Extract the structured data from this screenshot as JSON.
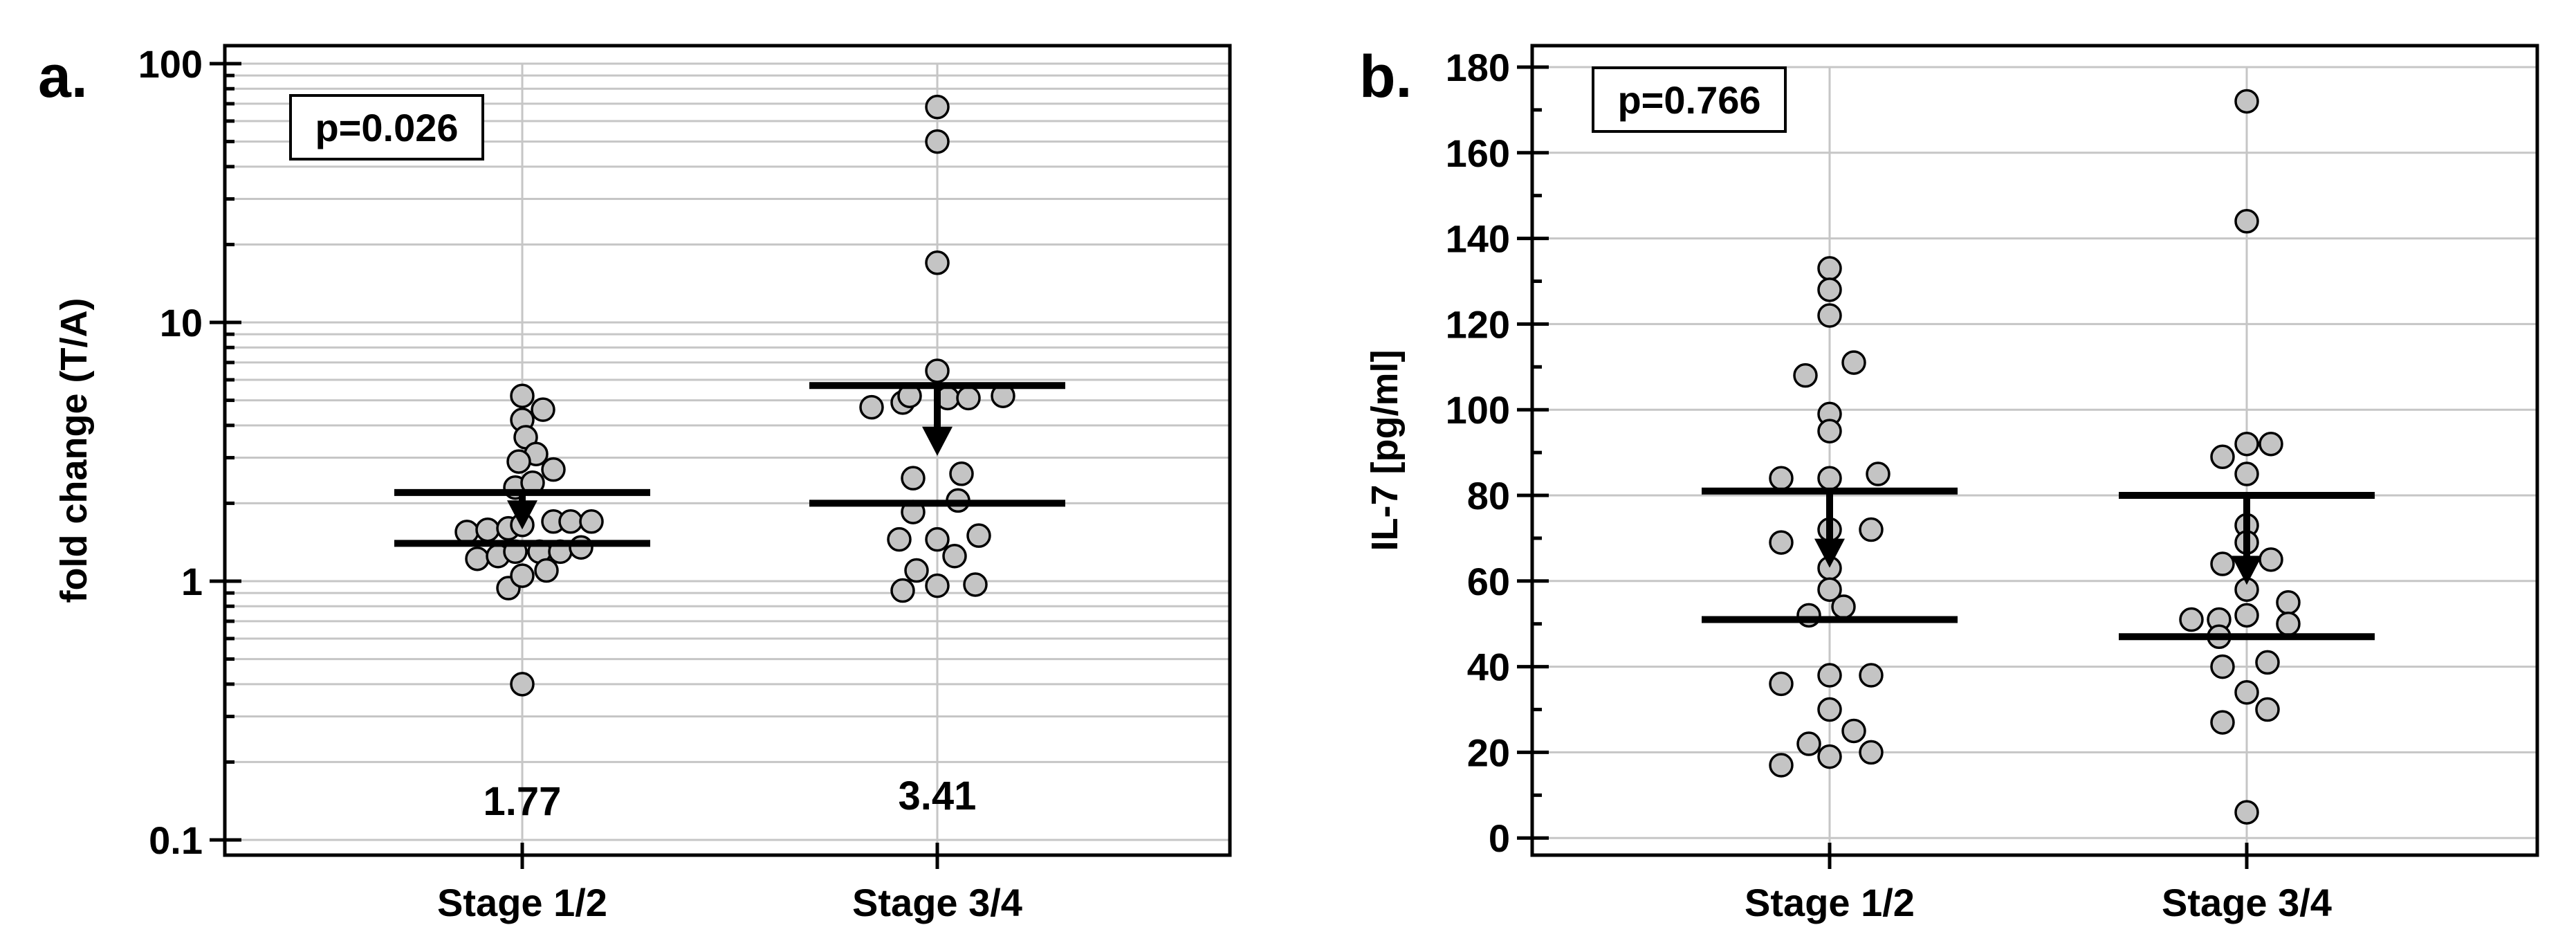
{
  "chart_data": [
    {
      "panel": "a.",
      "type": "scatter",
      "scale": "log",
      "ylabel": "fold change (T/A)",
      "ylim": [
        0.1,
        100
      ],
      "yticks": [
        {
          "v": 0.1,
          "t": "0.1"
        },
        {
          "v": 1,
          "t": "1"
        },
        {
          "v": 10,
          "t": "10"
        },
        {
          "v": 100,
          "t": "100"
        }
      ],
      "categories": [
        "Stage 1/2",
        "Stage 3/4"
      ],
      "pvalue": "p=0.026",
      "groups": [
        {
          "name": "Stage 1/2",
          "annotation": "1.77",
          "median": 1.77,
          "q1": 1.4,
          "q3": 2.2,
          "points": [
            [
              -0.08,
              1.55
            ],
            [
              -0.065,
              1.22
            ],
            [
              -0.05,
              1.58
            ],
            [
              -0.035,
              1.25
            ],
            [
              -0.02,
              1.6
            ],
            [
              -0.02,
              0.94
            ],
            [
              -0.01,
              2.3
            ],
            [
              0.0,
              1.65
            ],
            [
              0.0,
              0.4
            ],
            [
              -0.01,
              1.3
            ],
            [
              0.0,
              1.05
            ],
            [
              0.0,
              4.2
            ],
            [
              0.0,
              5.2
            ],
            [
              0.005,
              3.6
            ],
            [
              0.02,
              3.1
            ],
            [
              0.015,
              2.4
            ],
            [
              -0.005,
              2.9
            ],
            [
              0.025,
              1.3
            ],
            [
              0.03,
              4.6
            ],
            [
              0.035,
              1.1
            ],
            [
              0.045,
              2.7
            ],
            [
              0.045,
              1.7
            ],
            [
              0.055,
              1.3
            ],
            [
              0.07,
              1.7
            ],
            [
              0.085,
              1.35
            ],
            [
              0.1,
              1.7
            ]
          ]
        },
        {
          "name": "Stage 3/4",
          "annotation": "3.41",
          "median": 3.41,
          "q1": 2.0,
          "q3": 5.7,
          "points": [
            [
              0.0,
              68.0
            ],
            [
              0.0,
              50.0
            ],
            [
              0.0,
              17.0
            ],
            [
              0.0,
              6.5
            ],
            [
              -0.05,
              4.9
            ],
            [
              -0.095,
              4.7
            ],
            [
              -0.04,
              5.2
            ],
            [
              0.015,
              5.1
            ],
            [
              0.045,
              5.1
            ],
            [
              0.095,
              5.2
            ],
            [
              -0.035,
              2.5
            ],
            [
              0.035,
              2.6
            ],
            [
              -0.035,
              1.85
            ],
            [
              0.03,
              2.05
            ],
            [
              -0.055,
              1.45
            ],
            [
              0.0,
              1.45
            ],
            [
              0.06,
              1.5
            ],
            [
              -0.03,
              1.1
            ],
            [
              0.025,
              1.25
            ],
            [
              -0.05,
              0.92
            ],
            [
              0.0,
              0.96
            ],
            [
              0.055,
              0.97
            ]
          ]
        }
      ]
    },
    {
      "panel": "b.",
      "type": "scatter",
      "scale": "linear",
      "ylabel": "IL-7 [pg/ml]",
      "ylim": [
        -4,
        185
      ],
      "yticks": [
        {
          "v": 0,
          "t": "0"
        },
        {
          "v": 20,
          "t": "20"
        },
        {
          "v": 40,
          "t": "40"
        },
        {
          "v": 60,
          "t": "60"
        },
        {
          "v": 80,
          "t": "80"
        },
        {
          "v": 100,
          "t": "100"
        },
        {
          "v": 120,
          "t": "120"
        },
        {
          "v": 140,
          "t": "140"
        },
        {
          "v": 160,
          "t": "160"
        },
        {
          "v": 180,
          "t": "180"
        }
      ],
      "categories": [
        "Stage 1/2",
        "Stage 3/4"
      ],
      "pvalue": "p=0.766",
      "groups": [
        {
          "name": "Stage 1/2",
          "annotation": "",
          "median": 66,
          "q1": 51,
          "q3": 81,
          "points": [
            [
              0.0,
              133
            ],
            [
              0.0,
              128
            ],
            [
              0.0,
              122
            ],
            [
              0.035,
              111
            ],
            [
              -0.035,
              108
            ],
            [
              0.0,
              99
            ],
            [
              0.0,
              95
            ],
            [
              -0.07,
              84
            ],
            [
              0.0,
              84
            ],
            [
              0.07,
              85
            ],
            [
              -0.07,
              69
            ],
            [
              0.0,
              72
            ],
            [
              0.06,
              72
            ],
            [
              0.0,
              63
            ],
            [
              0.0,
              58
            ],
            [
              0.02,
              54
            ],
            [
              -0.03,
              52
            ],
            [
              -0.07,
              36
            ],
            [
              0.0,
              38
            ],
            [
              0.06,
              38
            ],
            [
              0.0,
              30
            ],
            [
              0.035,
              25
            ],
            [
              -0.03,
              22
            ],
            [
              0.06,
              20
            ],
            [
              -0.07,
              17
            ],
            [
              0.0,
              19
            ]
          ]
        },
        {
          "name": "Stage 3/4",
          "annotation": "",
          "median": 62,
          "q1": 47,
          "q3": 80,
          "points": [
            [
              0.0,
              172
            ],
            [
              0.0,
              144
            ],
            [
              0.0,
              92
            ],
            [
              -0.035,
              89
            ],
            [
              0.035,
              92
            ],
            [
              0.0,
              85
            ],
            [
              0.0,
              73
            ],
            [
              0.0,
              69
            ],
            [
              0.035,
              65
            ],
            [
              -0.035,
              64
            ],
            [
              0.0,
              58
            ],
            [
              0.0,
              52
            ],
            [
              -0.04,
              51
            ],
            [
              -0.08,
              51
            ],
            [
              0.06,
              55
            ],
            [
              -0.04,
              47
            ],
            [
              0.06,
              50
            ],
            [
              -0.035,
              40
            ],
            [
              0.03,
              41
            ],
            [
              0.0,
              34
            ],
            [
              0.03,
              30
            ],
            [
              -0.035,
              27
            ],
            [
              0.0,
              6
            ]
          ]
        }
      ]
    }
  ]
}
